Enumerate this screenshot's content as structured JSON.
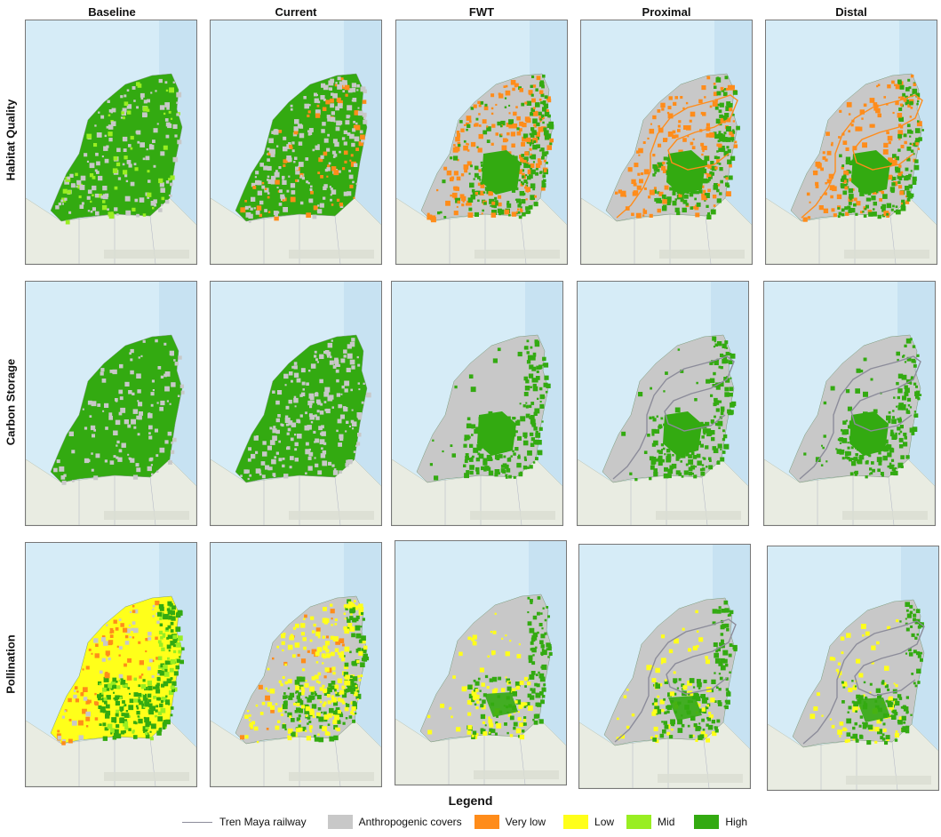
{
  "columns": [
    "Baseline",
    "Current",
    "FWT",
    "Proximal",
    "Distal"
  ],
  "rows": [
    "Habitat Quality",
    "Carbon Storage",
    "Pollination"
  ],
  "legend": {
    "title": "Legend",
    "items": [
      {
        "label": "Tren Maya railway",
        "kind": "line",
        "color": "#8c8c9a"
      },
      {
        "label": "Anthropogenic covers",
        "kind": "box",
        "color": "#c8c8c8"
      },
      {
        "label": "Very low",
        "kind": "box",
        "color": "#ff8c1a"
      },
      {
        "label": "Low",
        "kind": "box",
        "color": "#ffff1a"
      },
      {
        "label": "Mid",
        "kind": "box",
        "color": "#99ee22"
      },
      {
        "label": "High",
        "kind": "box",
        "color": "#33aa11"
      }
    ]
  },
  "colors": {
    "sea": "#d6ecf7",
    "deep_sea": "#bcdcef",
    "land": "#e9ece2",
    "anthropogenic": "#c8c8c8",
    "very_low": "#ff8c1a",
    "low": "#ffff1a",
    "mid": "#99ee22",
    "high": "#33aa11",
    "railway": "#8c8c9a"
  }
}
